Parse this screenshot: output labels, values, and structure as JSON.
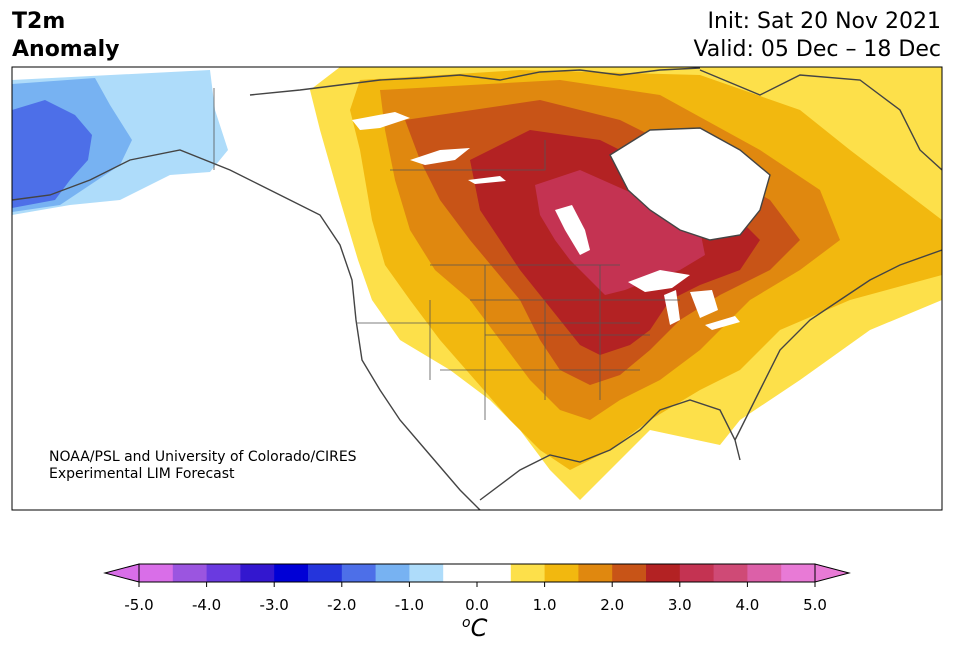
{
  "title": {
    "line1": "T2m",
    "line2": "Anomaly"
  },
  "header_right": {
    "init": "Init: Sat 20 Nov 2021",
    "valid": "Valid: 05 Dec – 18 Dec"
  },
  "credit": {
    "line1": "NOAA/PSL and University of Colorado/CIRES",
    "line2": "Experimental LIM Forecast"
  },
  "colorbar": {
    "unit_prefix": "o",
    "unit_main": "C",
    "ticks": [
      "-5.0",
      "-4.0",
      "-3.0",
      "-2.0",
      "-1.0",
      "0.0",
      "1.0",
      "2.0",
      "3.0",
      "4.0",
      "5.0"
    ],
    "colors": [
      "#d96ee8",
      "#9b55e0",
      "#6a3ae0",
      "#3317cf",
      "#0000d6",
      "#2535dc",
      "#4d6fe8",
      "#77b2f2",
      "#aedcfa",
      "#ffffff",
      "#ffffff",
      "#fde04a",
      "#f2b80f",
      "#e0880f",
      "#c85417",
      "#b32223",
      "#c43352",
      "#cf4a76",
      "#dc60a8",
      "#e87ad6"
    ],
    "over_color": "#e87ad6",
    "under_color": "#d96ee8"
  },
  "map": {
    "land_color": "#ffffff",
    "ocean_color": "#ffffff",
    "coast_color": "#444444"
  }
}
